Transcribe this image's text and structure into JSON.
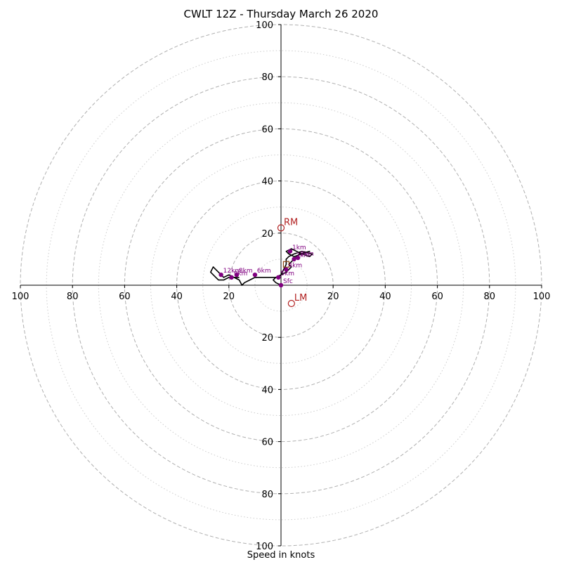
{
  "chart_data": {
    "type": "hodograph",
    "title": "CWLT 12Z - Thursday March 26 2020",
    "xlabel": "Speed in knots",
    "range": [
      -100,
      100
    ],
    "ring_major_step": 20,
    "ring_minor_step": 10,
    "tick_labels_x": [
      "100",
      "80",
      "60",
      "40",
      "20",
      "20",
      "40",
      "60",
      "80",
      "100"
    ],
    "tick_labels_y": [
      "100",
      "80",
      "60",
      "40",
      "20",
      "20",
      "40",
      "60",
      "80",
      "100"
    ],
    "tick_values": [
      -100,
      -80,
      -60,
      -40,
      -20,
      20,
      40,
      60,
      80,
      100
    ],
    "profile": [
      [
        0,
        0
      ],
      [
        -2,
        1
      ],
      [
        -3,
        2
      ],
      [
        -2,
        3
      ],
      [
        0,
        4
      ],
      [
        2,
        5
      ],
      [
        3,
        6
      ],
      [
        4,
        7
      ],
      [
        3,
        8
      ],
      [
        4,
        9
      ],
      [
        5,
        10
      ],
      [
        7,
        12
      ],
      [
        11,
        13
      ],
      [
        8,
        12
      ],
      [
        5,
        11
      ],
      [
        3,
        12
      ],
      [
        2,
        13
      ],
      [
        4,
        14
      ],
      [
        6,
        13
      ],
      [
        8,
        12
      ],
      [
        11,
        11
      ],
      [
        12,
        12
      ],
      [
        8,
        13
      ],
      [
        5,
        12
      ],
      [
        3,
        11
      ],
      [
        2,
        10
      ],
      [
        2,
        8
      ],
      [
        1,
        6
      ],
      [
        0,
        4
      ],
      [
        -1,
        3
      ],
      [
        -4,
        3
      ],
      [
        -7,
        3
      ],
      [
        -10,
        3
      ],
      [
        -12,
        2
      ],
      [
        -14,
        1
      ],
      [
        -15,
        0
      ],
      [
        -16,
        2
      ],
      [
        -18,
        3
      ],
      [
        -20,
        3
      ],
      [
        -22,
        2
      ],
      [
        -24,
        2
      ],
      [
        -25,
        3
      ],
      [
        -27,
        5
      ],
      [
        -26,
        7
      ],
      [
        -24,
        5
      ],
      [
        -23,
        4
      ],
      [
        -22,
        3
      ],
      [
        -20,
        4
      ],
      [
        -18,
        3
      ],
      [
        -16,
        3
      ]
    ],
    "height_markers": [
      {
        "label": "Sfc",
        "u": 0,
        "v": 0
      },
      {
        "label": "1km",
        "u": 3.5,
        "v": 13
      },
      {
        "label": "2km",
        "u": 5,
        "v": 10
      },
      {
        "label": "3km",
        "u": 6.5,
        "v": 10.5
      },
      {
        "label": "4km",
        "u": 2,
        "v": 6
      },
      {
        "label": "5km",
        "u": -1,
        "v": 3
      },
      {
        "label": "6km",
        "u": -10,
        "v": 4
      },
      {
        "label": "8km",
        "u": -17,
        "v": 4
      },
      {
        "label": "9km",
        "u": -19,
        "v": 3
      },
      {
        "label": "12km",
        "u": -23,
        "v": 4
      }
    ],
    "storm_motion": [
      {
        "label": "RM",
        "u": 0,
        "v": 22
      },
      {
        "label": "LM",
        "u": 4,
        "v": -7
      }
    ],
    "mean_wind": {
      "u": 2,
      "v": 8
    },
    "colors": {
      "profile": "#000000",
      "markers": "#800080",
      "storm": "#b22222",
      "mean": "#8b4513",
      "rings": "#b0b0b0",
      "grid_minor": "#cccccc"
    }
  }
}
